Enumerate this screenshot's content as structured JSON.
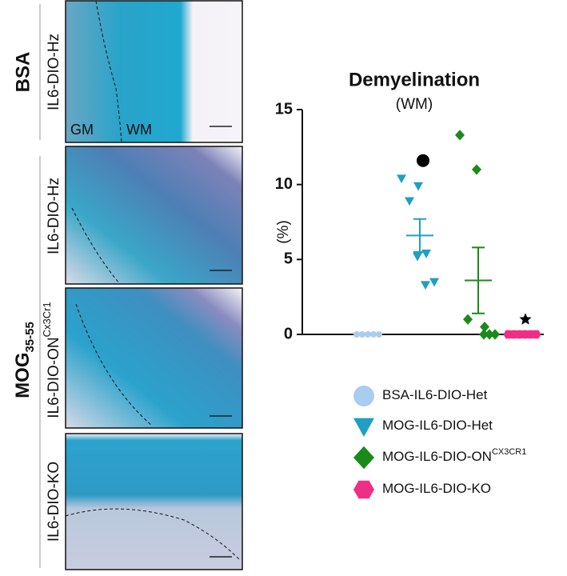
{
  "panels": {
    "bsa": "BSA",
    "mog": "MOG",
    "mog_sub": "35-55",
    "rows": [
      {
        "label": "IL6-DIO-Hz",
        "gm": "GM",
        "wm": "WM"
      },
      {
        "label": "IL6-DIO-Hz"
      },
      {
        "label": "IL6-DIO-ON",
        "label_sup": "Cx3Cr1"
      },
      {
        "label": "IL6-DIO-KO"
      }
    ]
  },
  "chart_data": {
    "type": "dot",
    "title": "Demyelination",
    "subtitle": "(WM)",
    "ylabel": "(%)",
    "ylim": [
      0,
      15
    ],
    "yticks": [
      0,
      5,
      10,
      15
    ],
    "series": [
      {
        "name": "BSA-IL6-DIO-Het",
        "color": "#a9cdf0",
        "marker": "circle",
        "values": [
          0,
          0,
          0,
          0,
          0
        ],
        "mean": 0,
        "sem": 0
      },
      {
        "name": "MOG-IL6-DIO-Het",
        "color": "#1f9fc4",
        "marker": "triangle",
        "values": [
          10.4,
          9.9,
          8.9,
          5.4,
          5.2,
          3.5,
          3.3
        ],
        "mean": 6.6,
        "sem": 1.1,
        "significance_y": 11.6,
        "significance_marker": "circle"
      },
      {
        "name": "MOG-IL6-DIO-ON",
        "name_sup": "CX3CR1",
        "color": "#1a8a1a",
        "marker": "diamond",
        "values": [
          13.3,
          11.0,
          1.0,
          0.5,
          0,
          0,
          0
        ],
        "mean": 3.6,
        "sem": 2.2
      },
      {
        "name": "MOG-IL6-DIO-KO",
        "color": "#ee2f86",
        "marker": "hexagon",
        "values": [
          0,
          0,
          0,
          0,
          0,
          0
        ],
        "mean": 0,
        "sem": 0,
        "significance_y": 1.0,
        "significance_marker": "star"
      }
    ]
  }
}
